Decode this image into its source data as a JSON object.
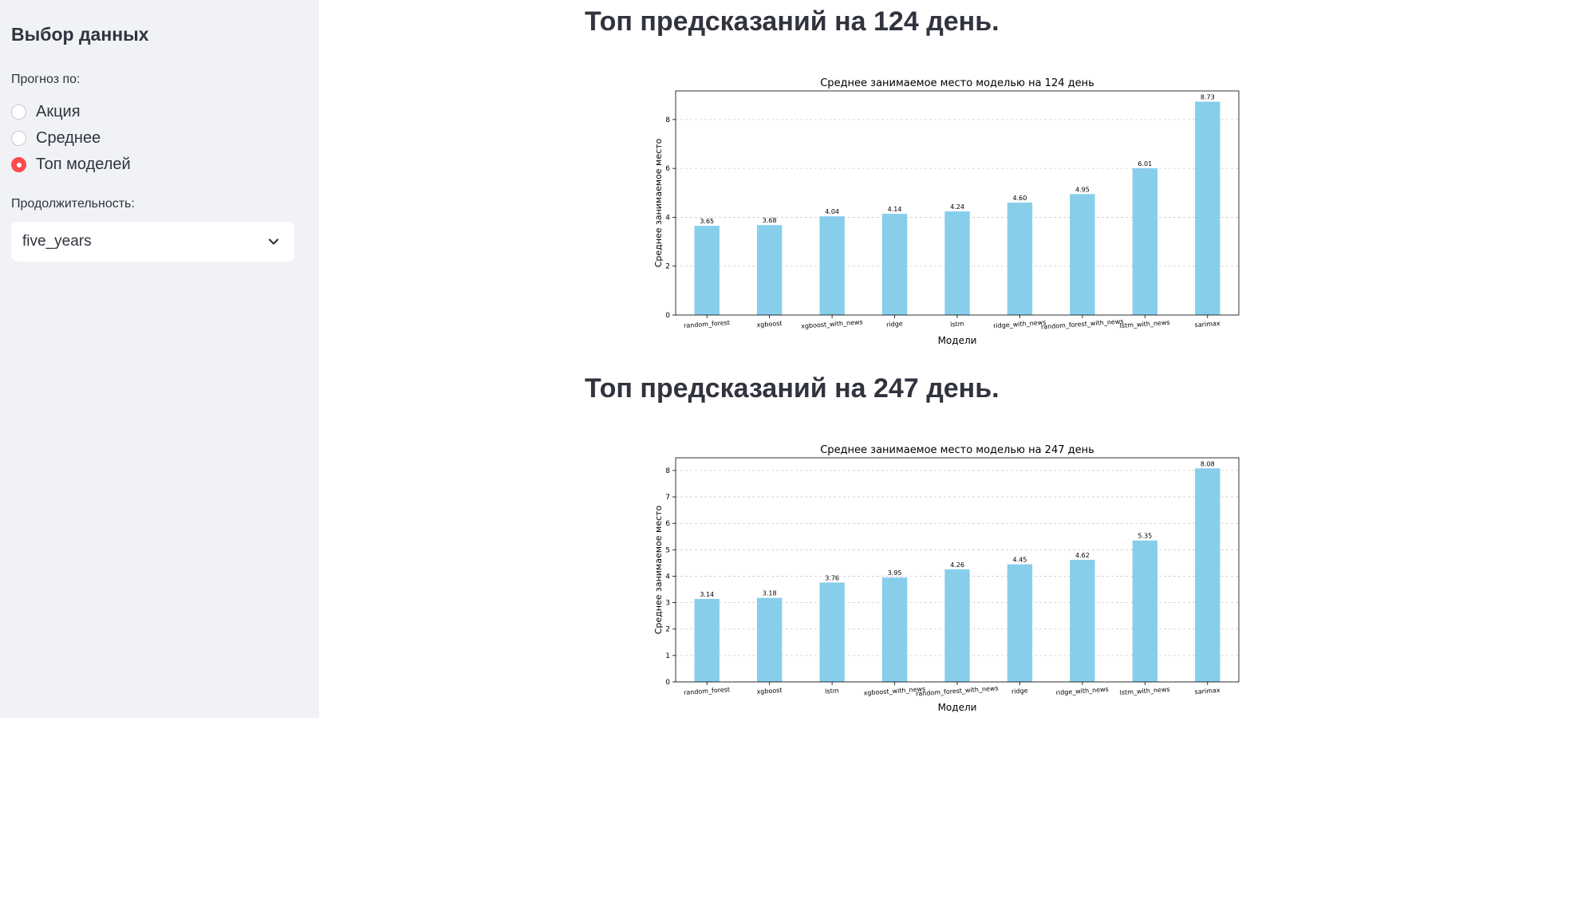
{
  "sidebar": {
    "title": "Выбор данных",
    "radio_label": "Прогноз по:",
    "radio_options": [
      {
        "label": "Акция",
        "checked": false
      },
      {
        "label": "Среднее",
        "checked": false
      },
      {
        "label": "Топ моделей",
        "checked": true
      }
    ],
    "duration_label": "Продолжительность:",
    "duration_value": "five_years"
  },
  "main": {
    "sections": [
      {
        "heading": "Топ предсказаний на 124 день."
      },
      {
        "heading": "Топ предсказаний на 247 день."
      }
    ]
  },
  "colors": {
    "bar": "#87ceeb",
    "accent": "#ff4b4b",
    "sidebar_bg": "#f0f2f6"
  },
  "chart_data": [
    {
      "type": "bar",
      "title": "Среднее занимаемое место моделью на 124 день",
      "xlabel": "Модели",
      "ylabel": "Среднее занимаемое место",
      "categories": [
        "random_forest",
        "xgboost",
        "xgboost_with_news",
        "ridge",
        "lstm",
        "ridge_with_news",
        "random_forest_with_news",
        "lstm_with_news",
        "sarimax"
      ],
      "values": [
        3.65,
        3.68,
        4.04,
        4.14,
        4.24,
        4.6,
        4.95,
        6.01,
        8.73
      ],
      "value_labels": [
        "3.65",
        "3.68",
        "4.04",
        "4.14",
        "4.24",
        "4.60",
        "4.95",
        "6.01",
        "8.73"
      ],
      "yticks": [
        0,
        2,
        4,
        6,
        8
      ],
      "ylim": [
        0,
        9.17
      ],
      "grid": "y-dashed"
    },
    {
      "type": "bar",
      "title": "Среднее занимаемое место моделью на 247 день",
      "xlabel": "Модели",
      "ylabel": "Среднее занимаемое место",
      "categories": [
        "random_forest",
        "xgboost",
        "lstm",
        "xgboost_with_news",
        "random_forest_with_news",
        "ridge",
        "ridge_with_news",
        "lstm_with_news",
        "sarimax"
      ],
      "values": [
        3.14,
        3.18,
        3.76,
        3.95,
        4.26,
        4.45,
        4.62,
        5.35,
        8.08
      ],
      "value_labels": [
        "3.14",
        "3.18",
        "3.76",
        "3.95",
        "4.26",
        "4.45",
        "4.62",
        "5.35",
        "8.08"
      ],
      "yticks": [
        0,
        1,
        2,
        3,
        4,
        5,
        6,
        7,
        8
      ],
      "ylim": [
        0,
        8.48
      ],
      "grid": "y-dashed"
    }
  ]
}
